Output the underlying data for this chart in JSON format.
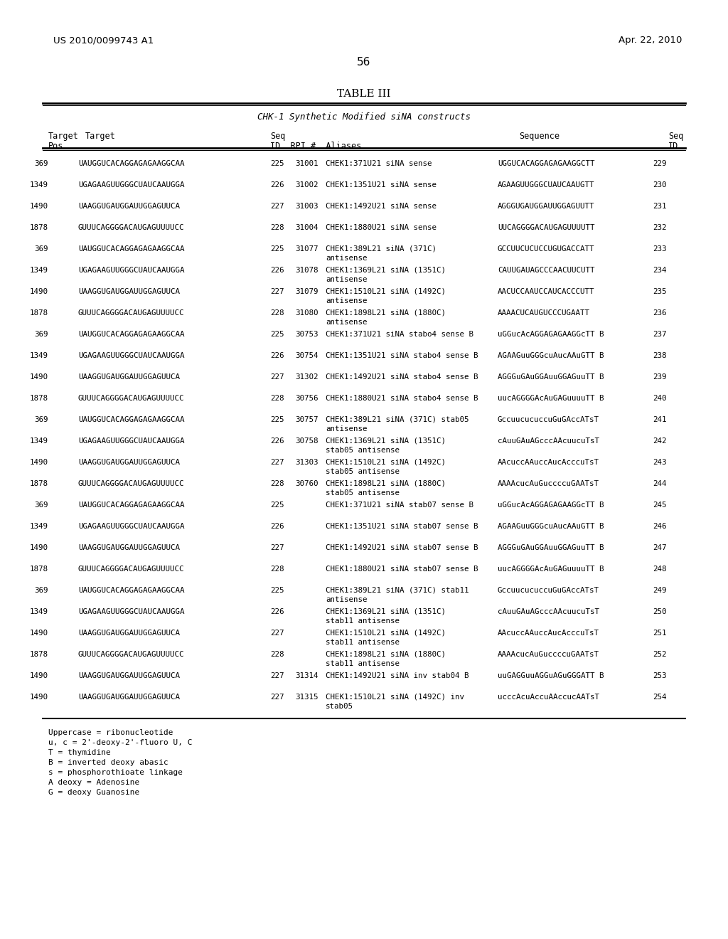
{
  "patent_number": "US 2010/0099743 A1",
  "patent_date": "Apr. 22, 2010",
  "page_number": "56",
  "table_title": "TABLE III",
  "table_subtitle": "CHK-1 Synthetic Modified siNA constructs",
  "col_headers": [
    "Target\nPos",
    "Target",
    "Seq\nID",
    "RPI #",
    "Aliases",
    "Sequence",
    "Seq\nID"
  ],
  "rows": [
    [
      "369",
      "UAUGGUCACAGGAGAGAAGGCAA",
      "225",
      "31001",
      "CHEK1:371U21 siNA sense",
      "UGGUCACAGGAGAGAAGGCTT",
      "229"
    ],
    [
      "1349",
      "UGAGAAGUUGGGCUAUCAAUGGA",
      "226",
      "31002",
      "CHEK1:1351U21 siNA sense",
      "AGAAGUUGGGCUAUCAAUGTT",
      "230"
    ],
    [
      "1490",
      "UAAGGUGAUGGAUUGGAGUUCA",
      "227",
      "31003",
      "CHEK1:1492U21 siNA sense",
      "AGGGUGAUGGAUUGGAGUUTT",
      "231"
    ],
    [
      "1878",
      "GUUUCAGGGGACAUGAGUUUUCC",
      "228",
      "31004",
      "CHEK1:1880U21 siNA sense",
      "UUCAGGGGACAUGAGUUUUTT",
      "232"
    ],
    [
      "369",
      "UAUGGUCACAGGAGAGAAGGCAA",
      "225",
      "31077",
      "CHEK1:389L21 siNA (371C)\nantisense",
      "GCCUUCUCUCCUGUGACCATT",
      "233"
    ],
    [
      "1349",
      "UGAGAAGUUGGGCUAUCAAUGGA",
      "226",
      "31078",
      "CHEK1:1369L21 siNA (1351C)\nantisense",
      "CAUUGAUAGCCCAACUUCUTT",
      "234"
    ],
    [
      "1490",
      "UAAGGUGAUGGAUUGGAGUUCA",
      "227",
      "31079",
      "CHEK1:1510L21 siNA (1492C)\nantisense",
      "AACUCCAAUCCAUCACCCUTT",
      "235"
    ],
    [
      "1878",
      "GUUUCAGGGGACAUGAGUUUUCC",
      "228",
      "31080",
      "CHEK1:1898L21 siNA (1880C)\nantisense",
      "AAAACUCAUGUCCCUGAATT",
      "236"
    ],
    [
      "369",
      "UAUGGUCACAGGAGAGAAGGCAA",
      "225",
      "30753",
      "CHEK1:371U21 siNA stabo4 sense B",
      "uGGucAcAGGAGAGAAGGcTT B",
      "237"
    ],
    [
      "1349",
      "UGAGAAGUUGGGCUAUCAAUGGA",
      "226",
      "30754",
      "CHEK1:1351U21 siNA stabo4 sense B",
      "AGAAGuuGGGcuAucAAuGTT B",
      "238"
    ],
    [
      "1490",
      "UAAGGUGAUGGAUUGGAGUUCA",
      "227",
      "31302",
      "CHEK1:1492U21 siNA stabo4 sense B",
      "AGGGuGAuGGAuuGGAGuuTT B",
      "239"
    ],
    [
      "1878",
      "GUUUCAGGGGACAUGAGUUUUCC",
      "228",
      "30756",
      "CHEK1:1880U21 siNA stabo4 sense B",
      "uucAGGGGAcAuGAGuuuuTT B",
      "240"
    ],
    [
      "369",
      "UAUGGUCACAGGAGAGAAGGCAA",
      "225",
      "30757",
      "CHEK1:389L21 siNA (371C) stab05\nantisense",
      "GccuucucuccuGuGAccATsT",
      "241"
    ],
    [
      "1349",
      "UGAGAAGUUGGGCUAUCAAUGGA",
      "226",
      "30758",
      "CHEK1:1369L21 siNA (1351C)\nstab05 antisense",
      "cAuuGAuAGcccAAcuucuTsT",
      "242"
    ],
    [
      "1490",
      "UAAGGUGAUGGAUUGGAGUUCA",
      "227",
      "31303",
      "CHEK1:1510L21 siNA (1492C)\nstab05 antisense",
      "AAcuccAAuccAucAcccuTsT",
      "243"
    ],
    [
      "1878",
      "GUUUCAGGGGACAUGAGUUUUCC",
      "228",
      "30760",
      "CHEK1:1898L21 siNA (1880C)\nstab05 antisense",
      "AAAAcucAuGuccccuGAATsT",
      "244"
    ],
    [
      "369",
      "UAUGGUCACAGGAGAGAAGGCAA",
      "225",
      "",
      "CHEK1:371U21 siNA stab07 sense B",
      "uGGucAcAGGAGAGAAGGcTT B",
      "245"
    ],
    [
      "1349",
      "UGAGAAGUUGGGCUAUCAAUGGA",
      "226",
      "",
      "CHEK1:1351U21 siNA stab07 sense B",
      "AGAAGuuGGGcuAucAAuGTT B",
      "246"
    ],
    [
      "1490",
      "UAAGGUGAUGGAUUGGAGUUCA",
      "227",
      "",
      "CHEK1:1492U21 siNA stab07 sense B",
      "AGGGuGAuGGAuuGGAGuuTT B",
      "247"
    ],
    [
      "1878",
      "GUUUCAGGGGACAUGAGUUUUCC",
      "228",
      "",
      "CHEK1:1880U21 siNA stab07 sense B",
      "uucAGGGGAcAuGAGuuuuTT B",
      "248"
    ],
    [
      "369",
      "UAUGGUCACAGGAGAGAAGGCAA",
      "225",
      "",
      "CHEK1:389L21 siNA (371C) stab11\nantisense",
      "GccuucucuccuGuGAccATsT",
      "249"
    ],
    [
      "1349",
      "UGAGAAGUUGGGCUAUCAAUGGA",
      "226",
      "",
      "CHEK1:1369L21 siNA (1351C)\nstab11 antisense",
      "cAuuGAuAGcccAAcuucuTsT",
      "250"
    ],
    [
      "1490",
      "UAAGGUGAUGGAUUGGAGUUCA",
      "227",
      "",
      "CHEK1:1510L21 siNA (1492C)\nstab11 antisense",
      "AAcuccAAuccAucAcccuTsT",
      "251"
    ],
    [
      "1878",
      "GUUUCAGGGGACAUGAGUUUUCC",
      "228",
      "",
      "CHEK1:1898L21 siNA (1880C)\nstab11 antisense",
      "AAAAcucAuGuccccuGAATsT",
      "252"
    ],
    [
      "1490",
      "UAAGGUGAUGGAUUGGAGUUCA",
      "227",
      "31314",
      "CHEK1:1492U21 siNA inv stab04 B",
      "uuGAGGuuAGGuAGuGGGATT B",
      "253"
    ],
    [
      "1490",
      "UAAGGUGAUGGAUUGGAGUUCA",
      "227",
      "31315",
      "CHEK1:1510L21 siNA (1492C) inv\nstab05",
      "ucccAcuAccuAAccucAATsT",
      "254"
    ]
  ],
  "footnotes": [
    "Uppercase = ribonucleotide",
    "u, c = 2'-deoxy-2'-fluoro U, C",
    "T = thymidine",
    "B = inverted deoxy abasic",
    "s = phosphorothioate linkage",
    "A deoxy = Adenosine",
    "G = deoxy Guanosine"
  ],
  "bg_color": "#ffffff",
  "text_color": "#000000",
  "font_family": "monospace"
}
